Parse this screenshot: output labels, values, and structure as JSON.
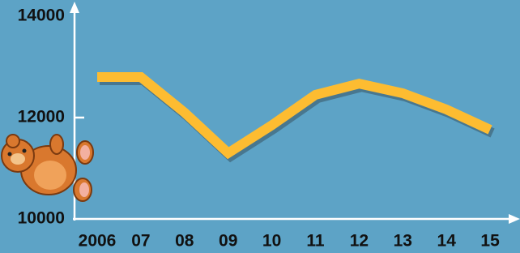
{
  "chart_data": {
    "type": "line",
    "categories": [
      "2006",
      "07",
      "08",
      "09",
      "10",
      "11",
      "12",
      "13",
      "14",
      "15"
    ],
    "series": [
      {
        "color": "#fdbc31",
        "values": [
          12800,
          12800,
          12100,
          11300,
          11850,
          12450,
          12670,
          12480,
          12160,
          11760
        ]
      }
    ],
    "ylim": [
      10000,
      14000
    ],
    "yticks": [
      10000,
      12000,
      14000
    ]
  }
}
